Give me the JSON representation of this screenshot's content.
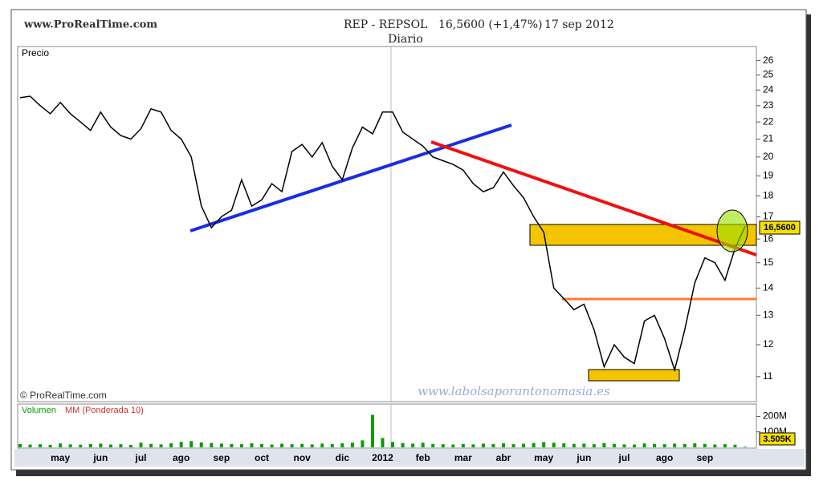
{
  "header": {
    "site": "www.ProRealTime.com",
    "title": "REP - REPSOL",
    "price_text": "16,5600 (+1,47%)",
    "date": "17 sep 2012",
    "subtitle": "Diario",
    "price_box": "16,5600",
    "copyright": "© ProRealTime.com",
    "watermark": "www.labolsaporantonomasia.es"
  },
  "chart_data": [
    {
      "type": "line",
      "title": "Precio",
      "color": "#000000",
      "log_scale": true,
      "categories": [
        null,
        null,
        null,
        null,
        "may",
        null,
        null,
        null,
        "jun",
        null,
        null,
        null,
        "jul",
        null,
        null,
        null,
        "ago",
        null,
        null,
        null,
        "sep",
        null,
        null,
        null,
        "oct",
        null,
        null,
        null,
        "nov",
        null,
        null,
        null,
        "dic",
        null,
        null,
        null,
        "2012",
        null,
        null,
        null,
        "feb",
        null,
        null,
        null,
        "mar",
        null,
        null,
        null,
        "abr",
        null,
        null,
        null,
        "may",
        null,
        null,
        null,
        "jun",
        null,
        null,
        null,
        "jul",
        null,
        null,
        null,
        "ago",
        null,
        null,
        null,
        "sep",
        null,
        null,
        null,
        null
      ],
      "values": [
        23.5,
        23.6,
        23.0,
        22.5,
        23.2,
        22.5,
        22.0,
        21.5,
        22.6,
        21.7,
        21.2,
        21.0,
        21.6,
        22.8,
        22.6,
        21.5,
        21.0,
        20.0,
        17.5,
        16.5,
        17.0,
        17.3,
        18.8,
        17.5,
        17.8,
        18.6,
        18.2,
        20.3,
        20.7,
        20.0,
        20.8,
        19.5,
        18.8,
        20.5,
        21.7,
        21.3,
        22.6,
        22.6,
        21.4,
        21.0,
        20.6,
        20.0,
        19.8,
        19.6,
        19.3,
        18.6,
        18.2,
        18.4,
        19.2,
        18.5,
        17.9,
        17.0,
        16.3,
        14.0,
        13.6,
        13.2,
        13.4,
        12.5,
        11.3,
        12.0,
        11.6,
        11.4,
        12.8,
        13.0,
        12.2,
        11.2,
        12.5,
        14.2,
        15.2,
        15.0,
        14.3,
        15.6,
        16.56
      ],
      "ylim": [
        10.3,
        26.9
      ],
      "yticks": [
        11,
        12,
        13,
        14,
        15,
        16,
        17,
        18,
        19,
        20,
        21,
        22,
        23,
        24,
        25,
        26
      ]
    },
    {
      "type": "bar",
      "title": "Volumen",
      "subtitle": "MM (Ponderada 10)",
      "color": "#00a000",
      "last_label": "3.505K",
      "values": [
        22000000,
        18000000,
        20000000,
        16000000,
        25000000,
        19000000,
        17000000,
        21000000,
        24000000,
        18000000,
        20000000,
        16000000,
        30000000,
        22000000,
        19000000,
        26000000,
        35000000,
        40000000,
        32000000,
        28000000,
        24000000,
        22000000,
        20000000,
        26000000,
        21000000,
        18000000,
        23000000,
        20000000,
        22000000,
        19000000,
        24000000,
        21000000,
        26000000,
        30000000,
        45000000,
        210000000,
        60000000,
        35000000,
        28000000,
        24000000,
        30000000,
        22000000,
        20000000,
        18000000,
        21000000,
        19000000,
        24000000,
        22000000,
        26000000,
        20000000,
        23000000,
        28000000,
        34000000,
        30000000,
        26000000,
        22000000,
        24000000,
        20000000,
        28000000,
        22000000,
        19000000,
        18000000,
        25000000,
        22000000,
        20000000,
        24000000,
        21000000,
        26000000,
        22000000,
        18000000,
        20000000,
        17000000,
        3505000
      ],
      "ylim": [
        0,
        275000000
      ],
      "yticks": [
        {
          "value": 100000000,
          "label": "100M"
        },
        {
          "value": 200000000,
          "label": "200M"
        }
      ]
    }
  ]
}
